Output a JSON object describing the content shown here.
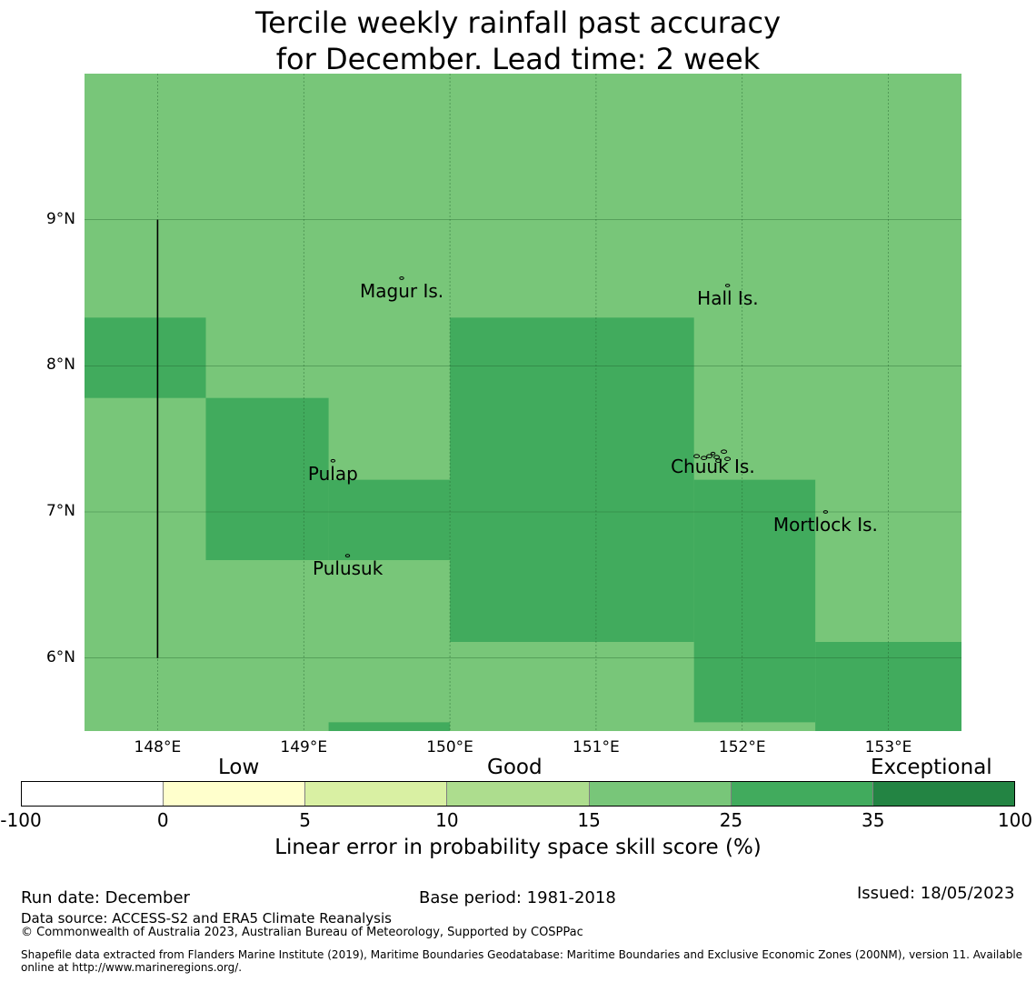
{
  "title": {
    "line1": "Tercile weekly rainfall past accuracy",
    "line2": "for December. Lead time: 2 week"
  },
  "map": {
    "lon_range": [
      147.5,
      153.5
    ],
    "lat_range": [
      5.5,
      10.0
    ],
    "lat_ticks": [
      {
        "value": 9,
        "label": "9°N"
      },
      {
        "value": 8,
        "label": "8°N"
      },
      {
        "value": 7,
        "label": "7°N"
      },
      {
        "value": 6,
        "label": "6°N"
      }
    ],
    "lon_ticks": [
      {
        "value": 148,
        "label": "148°E"
      },
      {
        "value": 149,
        "label": "149°E"
      },
      {
        "value": 150,
        "label": "150°E"
      },
      {
        "value": 151,
        "label": "151°E"
      },
      {
        "value": 152,
        "label": "152°E"
      },
      {
        "value": 153,
        "label": "153°E"
      }
    ],
    "background_color": "#78c679",
    "skill_cells": [
      {
        "lon": [
          147.5,
          148.33
        ],
        "lat": [
          7.78,
          8.33
        ],
        "color": "#41ab5d"
      },
      {
        "lon": [
          148.33,
          149.17
        ],
        "lat": [
          6.67,
          7.78
        ],
        "color": "#41ab5d"
      },
      {
        "lon": [
          149.17,
          150.0
        ],
        "lat": [
          6.67,
          7.22
        ],
        "color": "#41ab5d"
      },
      {
        "lon": [
          150.0,
          151.67
        ],
        "lat": [
          6.11,
          8.33
        ],
        "color": "#41ab5d"
      },
      {
        "lon": [
          151.67,
          152.5
        ],
        "lat": [
          5.56,
          7.22
        ],
        "color": "#41ab5d"
      },
      {
        "lon": [
          152.5,
          153.5
        ],
        "lat": [
          5.5,
          6.11
        ],
        "color": "#41ab5d"
      },
      {
        "lon": [
          149.17,
          150.0
        ],
        "lat": [
          5.5,
          5.56
        ],
        "color": "#41ab5d"
      }
    ],
    "boundary_line": {
      "lon": 148.0,
      "lat": [
        6.0,
        9.0
      ]
    },
    "islands": [
      {
        "name": "Magur Is.",
        "lon": 149.67,
        "lat": 8.6
      },
      {
        "name": "Hall Is.",
        "lon": 151.9,
        "lat": 8.55
      },
      {
        "name": "Pulap",
        "lon": 149.2,
        "lat": 7.35
      },
      {
        "name": "Chuuk Is.",
        "lon": 151.8,
        "lat": 7.4
      },
      {
        "name": "Mortlock Is.",
        "lon": 152.57,
        "lat": 7.0
      },
      {
        "name": "Pulusuk",
        "lon": 149.3,
        "lat": 6.7
      }
    ]
  },
  "colorbar": {
    "categories": [
      "Low",
      "Good",
      "Exceptional"
    ],
    "ticks": [
      "-100",
      "0",
      "5",
      "10",
      "15",
      "25",
      "35",
      "100"
    ],
    "colors": [
      "#ffffff",
      "#ffffcc",
      "#d9f0a3",
      "#addd8e",
      "#78c679",
      "#41ab5d",
      "#238443"
    ],
    "axis_label": "Linear error in probability space skill score (%)"
  },
  "footer": {
    "run_date": "Run date: December",
    "base_period": "Base period: 1981-2018",
    "issued": "Issued: 18/05/2023",
    "data_source": "Data source: ACCESS-S2 and ERA5 Climate Reanalysis",
    "copyright": "© Commonwealth of Australia 2023, Australian Bureau of Meteorology, Supported by COSPPac",
    "shapefile_line1": "Shapefile data extracted from Flanders Marine Institute (2019), Maritime Boundaries Geodatabase: Maritime Boundaries and Exclusive Economic Zones (200NM), version 11. Available",
    "shapefile_line2": "online at http://www.marineregions.org/."
  }
}
